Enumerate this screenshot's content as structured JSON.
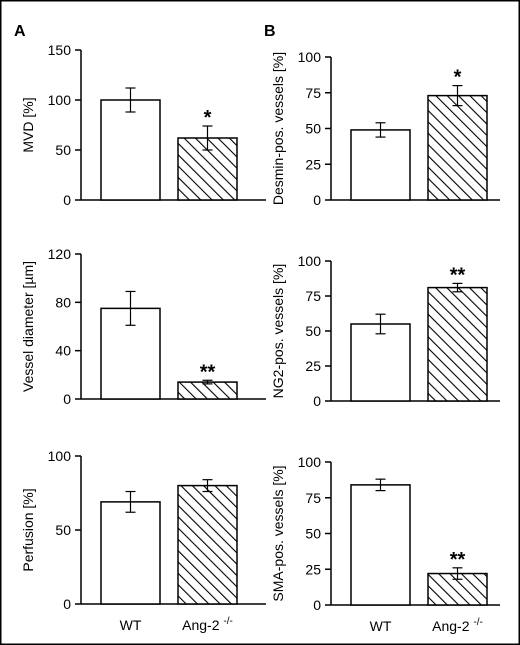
{
  "panel_letters": [
    "A",
    "B"
  ],
  "chart_data": [
    {
      "type": "bar",
      "panel": "A",
      "categories": [
        "WT",
        "Ang-2 -/-"
      ],
      "values": [
        100,
        62
      ],
      "errors": [
        12,
        12
      ],
      "significance": [
        "",
        "*"
      ],
      "ylabel": "MVD [%]",
      "ylim": [
        0,
        150
      ],
      "yticks": [
        0,
        50,
        100,
        150
      ],
      "show_xticklabels": false,
      "grid": false
    },
    {
      "type": "bar",
      "panel": "B",
      "categories": [
        "WT",
        "Ang-2 -/-"
      ],
      "values": [
        49,
        73
      ],
      "errors": [
        5,
        7
      ],
      "significance": [
        "",
        "*"
      ],
      "ylabel": "Desmin-pos. vessels [%]",
      "ylim": [
        0,
        100
      ],
      "yticks": [
        0,
        25,
        50,
        75,
        100
      ],
      "show_xticklabels": false,
      "grid": false
    },
    {
      "type": "bar",
      "panel": "A",
      "categories": [
        "WT",
        "Ang-2 -/-"
      ],
      "values": [
        75,
        14
      ],
      "errors": [
        14,
        1.5
      ],
      "significance": [
        "",
        "**"
      ],
      "ylabel": "Vessel diameter [µm]",
      "ylim": [
        0,
        120
      ],
      "yticks": [
        0,
        40,
        80,
        120
      ],
      "show_xticklabels": false,
      "grid": false
    },
    {
      "type": "bar",
      "panel": "B",
      "categories": [
        "WT",
        "Ang-2 -/-"
      ],
      "values": [
        55,
        81
      ],
      "errors": [
        7,
        3
      ],
      "significance": [
        "",
        "**"
      ],
      "ylabel": "NG2-pos. vessels [%]",
      "ylim": [
        0,
        100
      ],
      "yticks": [
        0,
        25,
        50,
        75,
        100
      ],
      "show_xticklabels": false,
      "grid": false
    },
    {
      "type": "bar",
      "panel": "A",
      "categories": [
        "WT",
        "Ang-2 -/-"
      ],
      "values": [
        69,
        80
      ],
      "errors": [
        7,
        4
      ],
      "significance": [
        "",
        ""
      ],
      "ylabel": "Perfusion [%]",
      "ylim": [
        0,
        100
      ],
      "yticks": [
        0,
        50,
        100
      ],
      "show_xticklabels": true,
      "grid": false
    },
    {
      "type": "bar",
      "panel": "B",
      "categories": [
        "WT",
        "Ang-2 -/-"
      ],
      "values": [
        84,
        22
      ],
      "errors": [
        4,
        4
      ],
      "significance": [
        "",
        "**"
      ],
      "ylabel": "SMA-pos. vessels [%]",
      "ylim": [
        0,
        100
      ],
      "yticks": [
        0,
        25,
        50,
        75,
        100
      ],
      "show_xticklabels": true,
      "grid": false
    }
  ]
}
